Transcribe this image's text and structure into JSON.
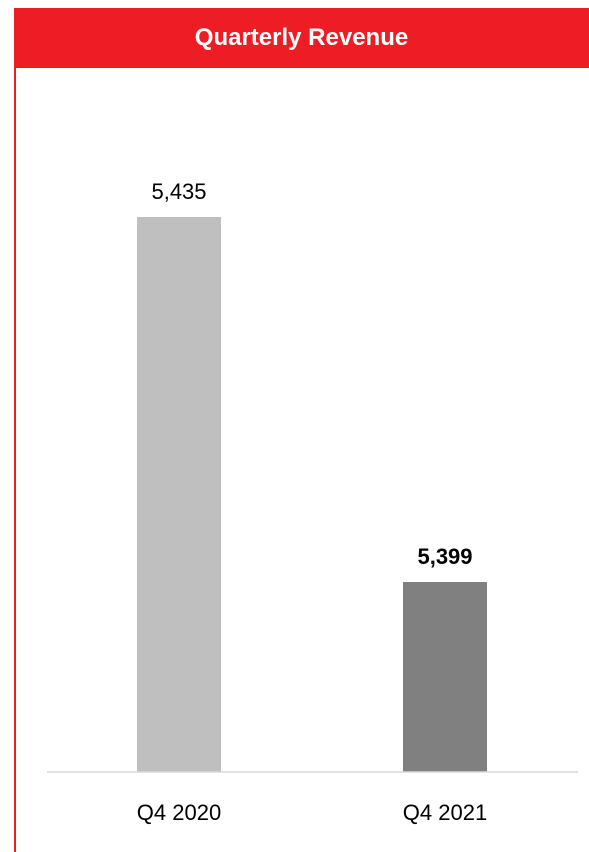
{
  "chart_data": {
    "type": "bar",
    "title": "Quarterly Revenue",
    "categories": [
      "Q4 2020",
      "Q4 2021"
    ],
    "values": [
      5435,
      5399
    ],
    "value_labels": [
      "5,435",
      "5,399"
    ],
    "bar_colors": [
      "#bfbfbf",
      "#808080"
    ],
    "highlight_index": 1,
    "accent_color": "#ee1c25",
    "axis_color": "#d9d9d9",
    "grid": false,
    "legend": "none"
  }
}
